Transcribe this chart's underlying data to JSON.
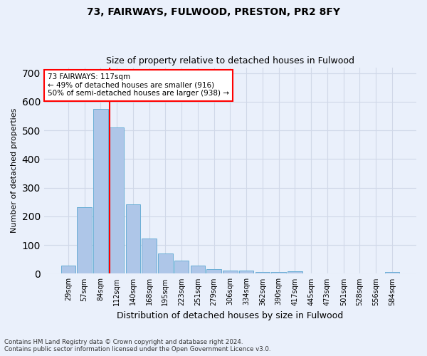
{
  "title_line1": "73, FAIRWAYS, FULWOOD, PRESTON, PR2 8FY",
  "title_line2": "Size of property relative to detached houses in Fulwood",
  "xlabel": "Distribution of detached houses by size in Fulwood",
  "ylabel": "Number of detached properties",
  "footnote": "Contains HM Land Registry data © Crown copyright and database right 2024.\nContains public sector information licensed under the Open Government Licence v3.0.",
  "bar_labels": [
    "29sqm",
    "57sqm",
    "84sqm",
    "112sqm",
    "140sqm",
    "168sqm",
    "195sqm",
    "223sqm",
    "251sqm",
    "279sqm",
    "306sqm",
    "334sqm",
    "362sqm",
    "390sqm",
    "417sqm",
    "445sqm",
    "473sqm",
    "501sqm",
    "528sqm",
    "556sqm",
    "584sqm"
  ],
  "bar_values": [
    28,
    232,
    575,
    510,
    243,
    122,
    70,
    46,
    28,
    17,
    10,
    11,
    6,
    5,
    8,
    0,
    0,
    0,
    0,
    0,
    5
  ],
  "bar_color": "#aec6e8",
  "bar_edge_color": "#6baed6",
  "grid_color": "#d0d8e8",
  "background_color": "#eaf0fb",
  "vline_color": "red",
  "vline_x_index": 3,
  "annotation_text": "73 FAIRWAYS: 117sqm\n← 49% of detached houses are smaller (916)\n50% of semi-detached houses are larger (938) →",
  "annotation_box_color": "white",
  "annotation_box_edge": "red",
  "ylim": [
    0,
    720
  ],
  "yticks": [
    0,
    100,
    200,
    300,
    400,
    500,
    600,
    700
  ]
}
